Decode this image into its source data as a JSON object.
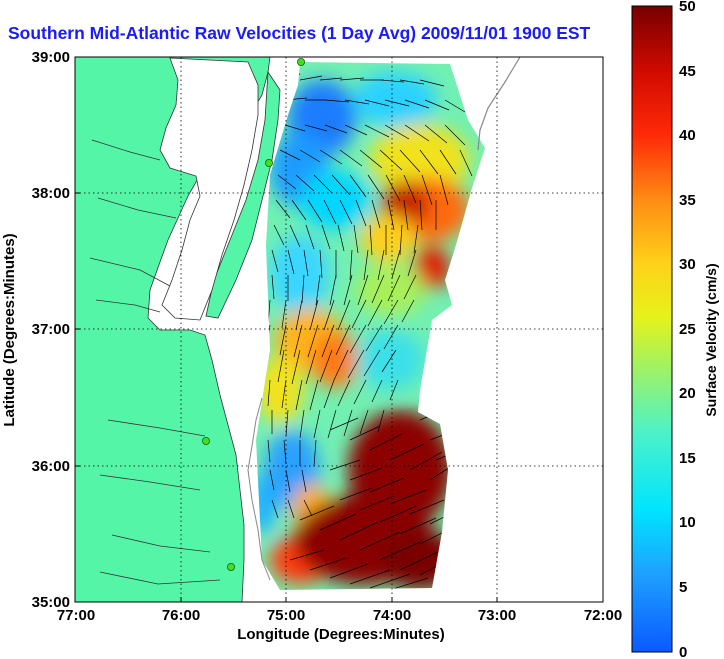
{
  "title": "Southern Mid-Atlantic Raw Velocities (1 Day Avg) 2009/11/01 1900 EST",
  "xaxis": {
    "label": "Longitude (Degrees:Minutes)",
    "ticks": [
      "77:00",
      "76:00",
      "75:00",
      "74:00",
      "73:00",
      "72:00"
    ]
  },
  "yaxis": {
    "label": "Latitude (Degrees:Minutes)",
    "ticks": [
      "39:00",
      "38:00",
      "37:00",
      "36:00",
      "35:00"
    ]
  },
  "colorbar": {
    "label": "Surface Velocity (cm/s)",
    "ticks": [
      "50",
      "45",
      "40",
      "35",
      "30",
      "25",
      "20",
      "15",
      "10",
      "5",
      "0"
    ],
    "min": 0,
    "max": 50
  },
  "colors": {
    "land": "#55f5a8",
    "water": "#ffffff",
    "title_text": "#1a1aff",
    "radar_site": "#44dd22"
  },
  "map": {
    "lon_range": [
      -77,
      -72
    ],
    "lat_range": [
      35,
      39
    ],
    "grid": "dotted"
  }
}
